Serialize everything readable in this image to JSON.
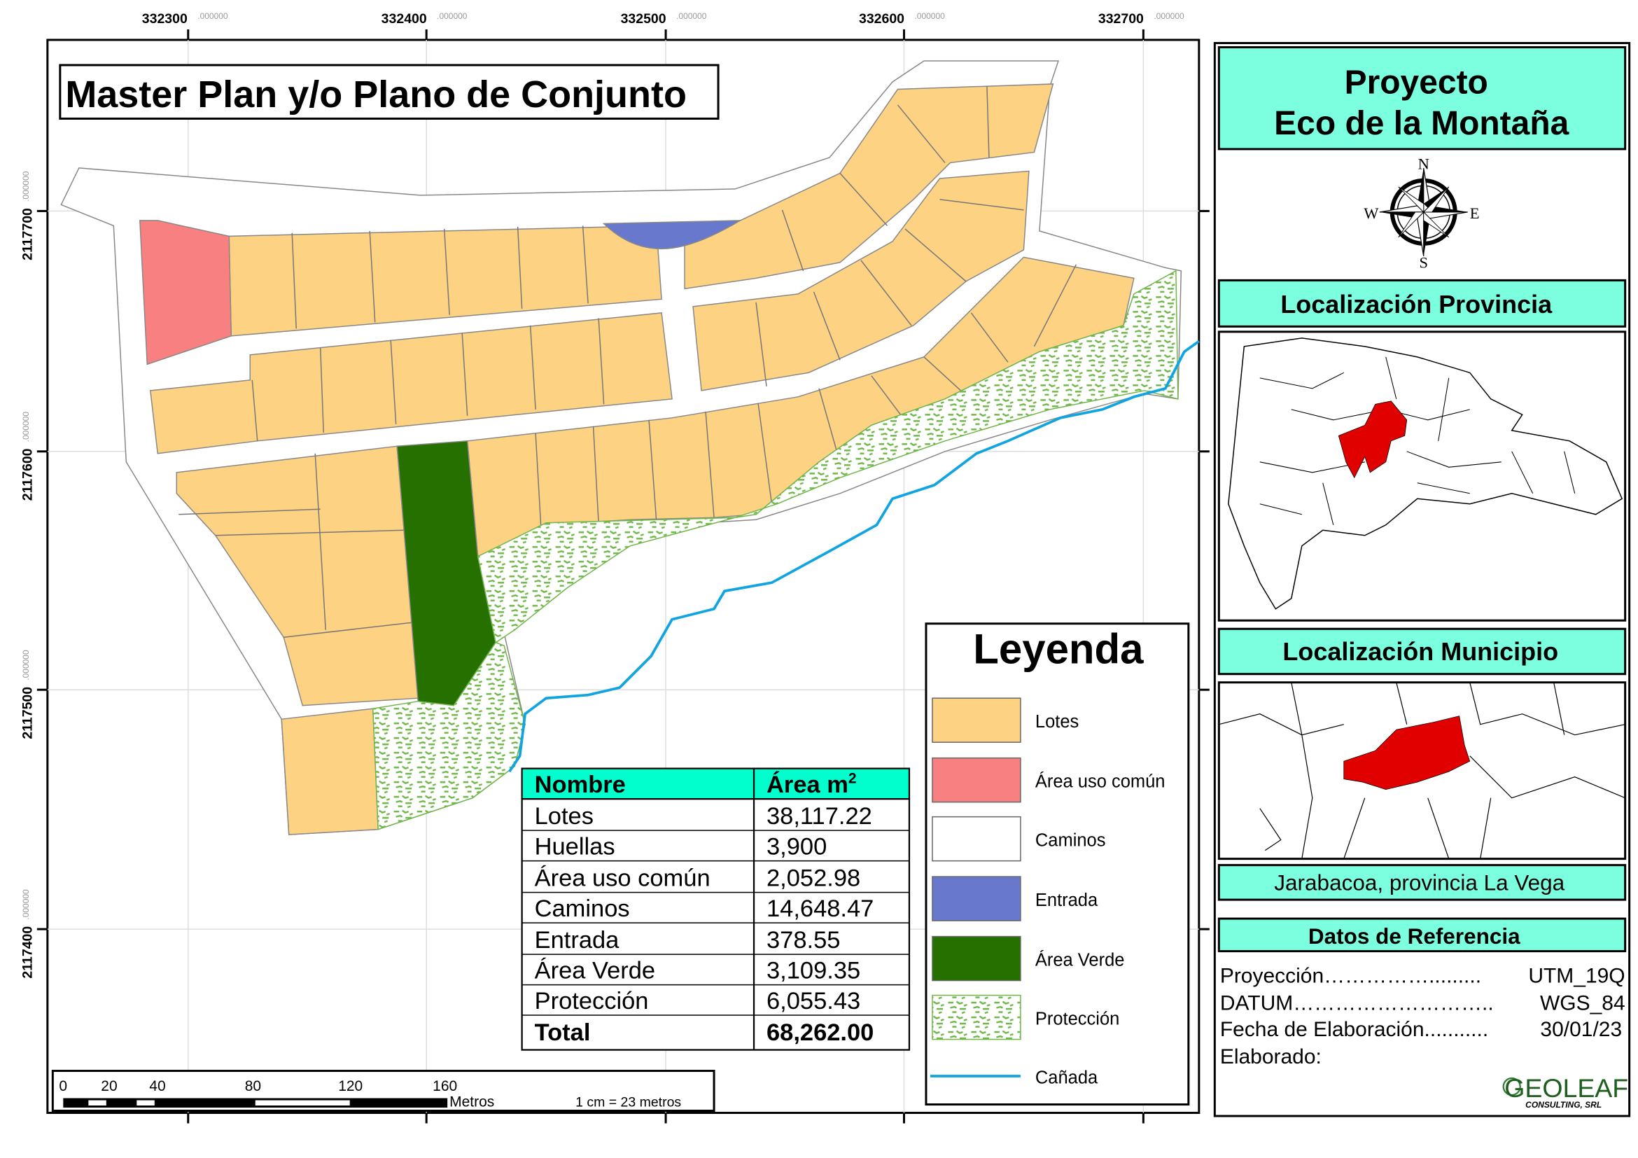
{
  "map": {
    "title": "Master Plan y/o Plano de Conjunto",
    "x_ticks": [
      "332300",
      "332400",
      "332500",
      "332600",
      "332700"
    ],
    "y_ticks": [
      "2117700",
      "2117600",
      "2117500",
      "2117400"
    ],
    "tick_suffix": ".000000"
  },
  "area_table": {
    "header": {
      "name": "Nombre",
      "area": "Área m",
      "area_sup": "2"
    },
    "rows": [
      {
        "name": "Lotes",
        "area": "38,117.22"
      },
      {
        "name": "Huellas",
        "area": "3,900"
      },
      {
        "name": "Área uso común",
        "area": "2,052.98"
      },
      {
        "name": "Caminos",
        "area": "14,648.47"
      },
      {
        "name": "Entrada",
        "area": "378.55"
      },
      {
        "name": "Área Verde",
        "area": "3,109.35"
      },
      {
        "name": "Protección",
        "area": "6,055.43"
      }
    ],
    "total": {
      "name": "Total",
      "area": "68,262.00"
    }
  },
  "legend": {
    "title": "Leyenda",
    "items": [
      {
        "label": "Lotes",
        "color": "#FDD282"
      },
      {
        "label": "Área uso común",
        "color": "#F88080"
      },
      {
        "label": "Caminos",
        "color": "#FFFFFF"
      },
      {
        "label": "Entrada",
        "color": "#6878CC"
      },
      {
        "label": "Área Verde",
        "color": "#267000"
      },
      {
        "label": "Protección",
        "color": "#6FB648"
      },
      {
        "label": "Cañada",
        "color": "#10A4E0"
      }
    ]
  },
  "scale_bar": {
    "labels": [
      "0",
      "20",
      "40",
      "80",
      "120",
      "160"
    ],
    "unit": "Metros",
    "ratio": "1 cm = 23 metros"
  },
  "panel": {
    "project_line1": "Proyecto",
    "project_line2": "Eco de la Montaña",
    "compass": {
      "n": "N",
      "s": "S",
      "e": "E",
      "w": "W"
    },
    "province_header": "Localización Provincia",
    "municipio_header": "Localización Municipio",
    "location": "Jarabacoa, provincia La Vega",
    "reference_header": "Datos de Referencia",
    "reference": [
      {
        "label": "Proyección",
        "dots": "…………….........",
        "value": "UTM_19Q"
      },
      {
        "label": "DATUM",
        "dots": "………………………..",
        "value": "WGS_84"
      },
      {
        "label": "Fecha de Elaboración",
        "dots": "...........",
        "value": "30/01/23"
      },
      {
        "label": "Elaborado:",
        "dots": "",
        "value": ""
      }
    ],
    "logo": {
      "name": "GEOLEAF",
      "sub": "CONSULTING, SRL"
    },
    "header_color": "#7CFFDF",
    "highlight_color": "#E00000"
  }
}
